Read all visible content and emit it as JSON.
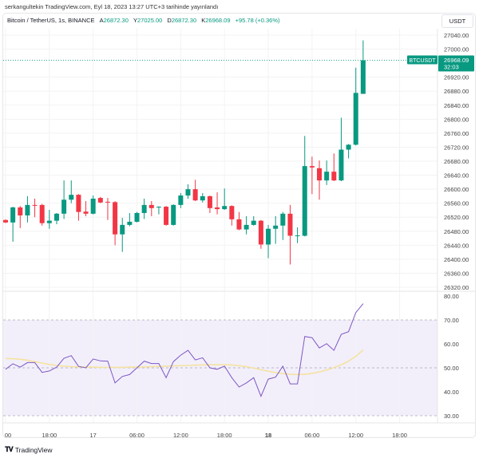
{
  "published": "serkangultekin TradingView.com, Eyl 18, 2023 13:27 UTC+3 tarihinde yayınlandı",
  "legend": {
    "symbol": "Bitcoin / TetherUS, 1s, BINANCE",
    "open_key": "A",
    "open": "26872.30",
    "high_key": "Y",
    "high": "27025.00",
    "low_key": "D",
    "low": "26872.30",
    "close_key": "K",
    "close": "26968.09",
    "change": "+95.78 (+0.36%)"
  },
  "currency_button": "USDT",
  "last_price": {
    "symbol_label": "BTCUSDT",
    "price": "26968.09",
    "countdown": "32:03",
    "value": 26968.09
  },
  "colors": {
    "up": "#089981",
    "down": "#f23645",
    "rsi": "#7e57c2",
    "rsi_ma": "#f5e2a0",
    "rsi_band": "#f2effb"
  },
  "brand": {
    "logo_glyph": "17",
    "name": "TradingView"
  },
  "chart_data": [
    {
      "type": "candlestick",
      "ylim": [
        26320,
        27040
      ],
      "y_ticks": [
        "27040.00",
        "27000.00",
        "26920.00",
        "26880.00",
        "26840.00",
        "26800.00",
        "26760.00",
        "26720.00",
        "26680.00",
        "26640.00",
        "26600.00",
        "26560.00",
        "26520.00",
        "26480.00",
        "26440.00",
        "26400.00",
        "26360.00",
        "26320.00"
      ],
      "x_ticks": [
        {
          "label": "00",
          "time": "2023-09-16 12:00"
        },
        {
          "label": "18:00",
          "time": "2023-09-16 18:00"
        },
        {
          "label": "17",
          "time": "2023-09-17 00:00",
          "bold": false
        },
        {
          "label": "06:00",
          "time": "2023-09-17 06:00"
        },
        {
          "label": "12:00",
          "time": "2023-09-17 12:00"
        },
        {
          "label": "18:00",
          "time": "2023-09-17 18:00"
        },
        {
          "label": "18",
          "time": "2023-09-18 00:00",
          "bold": true
        },
        {
          "label": "06:00",
          "time": "2023-09-18 06:00"
        },
        {
          "label": "12:00",
          "time": "2023-09-18 12:00"
        },
        {
          "label": "18:00",
          "time": "2023-09-18 18:00"
        }
      ],
      "grid": true,
      "candles": [
        [
          "2023-09-16 12:00",
          26512,
          26514,
          26503,
          26505
        ],
        [
          "2023-09-16 13:00",
          26505,
          26550,
          26450,
          26548
        ],
        [
          "2023-09-16 14:00",
          26548,
          26552,
          26489,
          26525
        ],
        [
          "2023-09-16 15:00",
          26525,
          26580,
          26505,
          26555
        ],
        [
          "2023-09-16 16:00",
          26555,
          26573,
          26520,
          26553
        ],
        [
          "2023-09-16 17:00",
          26555,
          26558,
          26496,
          26503
        ],
        [
          "2023-09-16 18:00",
          26503,
          26541,
          26487,
          26510
        ],
        [
          "2023-09-16 19:00",
          26510,
          26532,
          26500,
          26530
        ],
        [
          "2023-09-16 20:00",
          26530,
          26625,
          26515,
          26570
        ],
        [
          "2023-09-16 21:00",
          26570,
          26625,
          26560,
          26584
        ],
        [
          "2023-09-16 22:00",
          26584,
          26586,
          26510,
          26535
        ],
        [
          "2023-09-16 23:00",
          26536,
          26566,
          26523,
          26530
        ],
        [
          "2023-09-17 00:00",
          26530,
          26582,
          26528,
          26573
        ],
        [
          "2023-09-17 01:00",
          26575,
          26578,
          26560,
          26562
        ],
        [
          "2023-09-17 02:00",
          26564,
          26575,
          26512,
          26563
        ],
        [
          "2023-09-17 03:00",
          26563,
          26566,
          26440,
          26471
        ],
        [
          "2023-09-17 04:00",
          26471,
          26518,
          26421,
          26498
        ],
        [
          "2023-09-17 05:00",
          26498,
          26532,
          26494,
          26507
        ],
        [
          "2023-09-17 06:00",
          26507,
          26535,
          26505,
          26532
        ],
        [
          "2023-09-17 07:00",
          26532,
          26573,
          26515,
          26555
        ],
        [
          "2023-09-17 08:00",
          26555,
          26566,
          26523,
          26546
        ],
        [
          "2023-09-17 09:00",
          26549,
          26551,
          26528,
          26550
        ],
        [
          "2023-09-17 10:00",
          26550,
          26552,
          26496,
          26498
        ],
        [
          "2023-09-17 11:00",
          26498,
          26557,
          26496,
          26555
        ],
        [
          "2023-09-17 12:00",
          26555,
          26589,
          26546,
          26582
        ],
        [
          "2023-09-17 13:00",
          26582,
          26614,
          26573,
          26600
        ],
        [
          "2023-09-17 14:00",
          26600,
          26627,
          26566,
          26568
        ],
        [
          "2023-09-17 15:00",
          26568,
          26589,
          26562,
          26580
        ],
        [
          "2023-09-17 16:00",
          26580,
          26582,
          26532,
          26546
        ],
        [
          "2023-09-17 17:00",
          26548,
          26591,
          26528,
          26543
        ],
        [
          "2023-09-17 18:00",
          26543,
          26602,
          26541,
          26552
        ],
        [
          "2023-09-17 19:00",
          26552,
          26554,
          26496,
          26514
        ],
        [
          "2023-09-17 20:00",
          26514,
          26535,
          26483,
          26485
        ],
        [
          "2023-09-17 21:00",
          26485,
          26523,
          26471,
          26498
        ],
        [
          "2023-09-17 22:00",
          26498,
          26523,
          26496,
          26510
        ],
        [
          "2023-09-17 23:00",
          26510,
          26512,
          26430,
          26442
        ],
        [
          "2023-09-18 00:00",
          26442,
          26498,
          26403,
          26487
        ],
        [
          "2023-09-18 01:00",
          26487,
          26523,
          26444,
          26496
        ],
        [
          "2023-09-18 02:00",
          26496,
          26535,
          26455,
          26530
        ],
        [
          "2023-09-18 03:00",
          26530,
          26555,
          26385,
          26467
        ],
        [
          "2023-09-18 04:00",
          26467,
          26491,
          26446,
          26468
        ],
        [
          "2023-09-18 05:00",
          26467,
          26752,
          26465,
          26666
        ],
        [
          "2023-09-18 06:00",
          26666,
          26693,
          26586,
          26662
        ],
        [
          "2023-09-18 07:00",
          26660,
          26682,
          26570,
          26625
        ],
        [
          "2023-09-18 08:00",
          26625,
          26682,
          26612,
          26650
        ],
        [
          "2023-09-18 09:00",
          26650,
          26702,
          26623,
          26625
        ],
        [
          "2023-09-18 10:00",
          26625,
          26804,
          26623,
          26713
        ],
        [
          "2023-09-18 11:00",
          26713,
          26729,
          26688,
          26727
        ],
        [
          "2023-09-18 12:00",
          26727,
          26947,
          26725,
          26875
        ],
        [
          "2023-09-18 13:00",
          26872.3,
          27025.0,
          26872.3,
          26968.09
        ]
      ]
    },
    {
      "type": "line",
      "ylim": [
        30,
        80
      ],
      "y_ticks": [
        "80.00",
        "70.00",
        "60.00",
        "50.00",
        "40.00",
        "30.00"
      ],
      "levels": [
        70,
        50,
        30
      ],
      "series": [
        {
          "values": [
            49.4,
            51.7,
            50.3,
            52.2,
            52.2,
            48.1,
            48.7,
            50.3,
            54.0,
            55.1,
            50.6,
            50.0,
            53.7,
            52.9,
            52.8,
            43.7,
            46.4,
            47.2,
            50.0,
            52.8,
            51.8,
            51.8,
            45.9,
            52.6,
            55.3,
            57.3,
            53.3,
            54.2,
            50.0,
            49.4,
            50.7,
            45.9,
            42.0,
            43.7,
            45.9,
            38.1,
            45.3,
            46.1,
            50.7,
            43.3,
            43.3,
            63.1,
            62.6,
            58.3,
            60.1,
            57.3,
            64.0,
            65.1,
            73.1,
            76.8
          ]
        },
        {
          "values": [
            53.9,
            53.8,
            53.6,
            53.2,
            52.6,
            52.0,
            51.4,
            51.0,
            50.7,
            50.5,
            50.4,
            50.3,
            50.3,
            50.2,
            50.2,
            50.2,
            50.2,
            50.3,
            50.3,
            50.4,
            50.5,
            50.6,
            50.7,
            50.8,
            50.9,
            51.0,
            51.1,
            51.2,
            51.3,
            51.3,
            51.3,
            51.2,
            50.9,
            50.5,
            49.9,
            49.2,
            48.6,
            48.0,
            47.6,
            47.3,
            47.2,
            47.3,
            47.7,
            48.3,
            49.1,
            50.1,
            51.3,
            52.8,
            54.8,
            57.5
          ]
        }
      ]
    }
  ]
}
